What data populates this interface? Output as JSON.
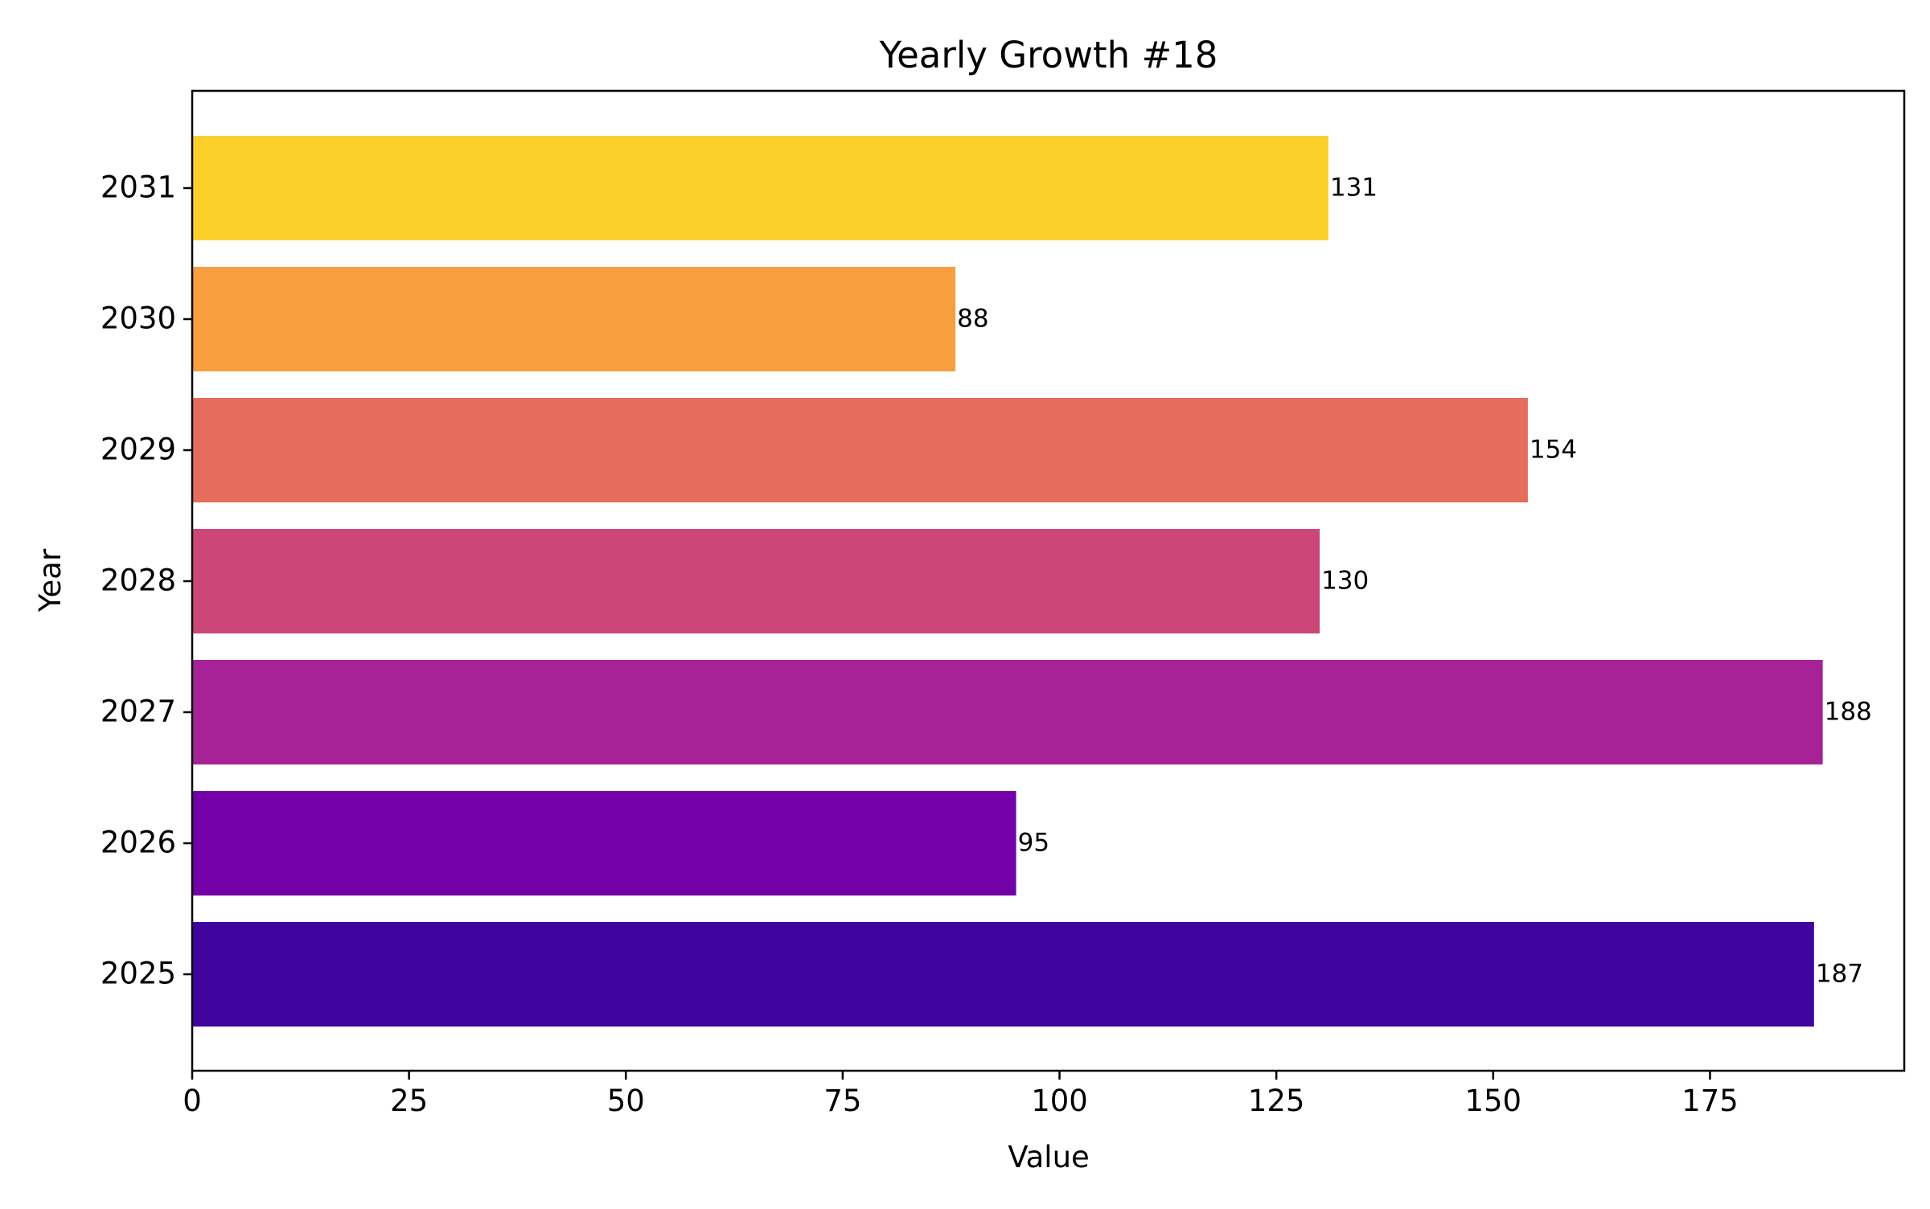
{
  "chart_data": {
    "type": "bar",
    "orientation": "horizontal",
    "title": "Yearly Growth #18",
    "xlabel": "Value",
    "ylabel": "Year",
    "categories": [
      "2025",
      "2026",
      "2027",
      "2028",
      "2029",
      "2030",
      "2031"
    ],
    "values": [
      187,
      95,
      188,
      130,
      154,
      88,
      131
    ],
    "data_labels": [
      "187",
      "95",
      "188",
      "130",
      "154",
      "88",
      "131"
    ],
    "colors": [
      "#40049f",
      "#7201a8",
      "#a62296",
      "#cc4778",
      "#e66d5d",
      "#f89e3f",
      "#fbd02b"
    ],
    "xlim": [
      0,
      197.4
    ],
    "x_ticks": [
      0,
      25,
      50,
      75,
      100,
      125,
      150,
      175
    ],
    "x_tick_labels": [
      "0",
      "25",
      "50",
      "75",
      "100",
      "125",
      "150",
      "175"
    ],
    "grid": false,
    "legend": "none"
  }
}
